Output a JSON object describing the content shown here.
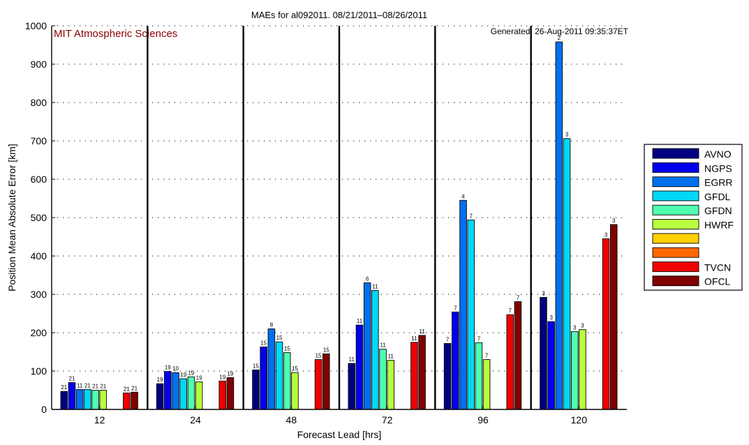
{
  "chart_data": {
    "type": "bar",
    "title": "MAEs for al092011. 08/21/2011–08/26/2011",
    "xlabel": "Forecast Lead [hrs]",
    "ylabel": "Position Mean Absolute Error [km]",
    "ylim": [
      0,
      1000
    ],
    "yticks": [
      0,
      100,
      200,
      300,
      400,
      500,
      600,
      700,
      800,
      900,
      1000
    ],
    "categories": [
      "12",
      "24",
      "48",
      "72",
      "96",
      "120"
    ],
    "grid": "horizontal dotted",
    "legend_position": "right",
    "annotation_left": "MIT Atmospheric Sciences",
    "annotation_right": "Generated: 26-Aug-2011 09:35:37ET",
    "series": [
      {
        "name": "AVNO",
        "color": "#000080",
        "values": [
          47,
          67,
          103,
          120,
          172,
          292
        ],
        "counts": [
          "21",
          "19",
          "15",
          "11",
          "7",
          "3"
        ]
      },
      {
        "name": "NGPS",
        "color": "#0000ee",
        "values": [
          70,
          99,
          163,
          220,
          254,
          229
        ],
        "counts": [
          "21",
          "19",
          "15",
          "11",
          "7",
          "3"
        ]
      },
      {
        "name": "EGRR",
        "color": "#0070ee",
        "values": [
          52,
          96,
          210,
          330,
          545,
          958
        ],
        "counts": [
          "11",
          "10",
          "8",
          "6",
          "4",
          "2"
        ]
      },
      {
        "name": "GFDL",
        "color": "#00d8f5",
        "values": [
          52,
          80,
          176,
          310,
          494,
          706
        ],
        "counts": [
          "21",
          "19",
          "15",
          "11",
          "7",
          "3"
        ]
      },
      {
        "name": "GFDN",
        "color": "#50ffb0",
        "values": [
          50,
          85,
          148,
          157,
          174,
          203
        ],
        "counts": [
          "21",
          "19",
          "15",
          "11",
          "7",
          "3"
        ]
      },
      {
        "name": "HWRF",
        "color": "#b8ff40",
        "values": [
          50,
          72,
          96,
          128,
          130,
          208
        ],
        "counts": [
          "21",
          "19",
          "15",
          "11",
          "7",
          "3"
        ]
      },
      {
        "name": "",
        "color": "#ffd000",
        "values": [
          null,
          null,
          null,
          null,
          null,
          null
        ],
        "counts": [
          "",
          "",
          "",
          "",
          "",
          ""
        ]
      },
      {
        "name": "",
        "color": "#ff6800",
        "values": [
          null,
          null,
          null,
          null,
          null,
          null
        ],
        "counts": [
          "",
          "",
          "",
          "",
          "",
          ""
        ]
      },
      {
        "name": "TVCN",
        "color": "#f00000",
        "values": [
          43,
          74,
          130,
          175,
          247,
          445
        ],
        "counts": [
          "21",
          "19",
          "15",
          "11",
          "7",
          "3"
        ]
      },
      {
        "name": "OFCL",
        "color": "#800000",
        "values": [
          45,
          83,
          145,
          193,
          281,
          482
        ],
        "counts": [
          "21",
          "19",
          "15",
          "11",
          "7",
          "3"
        ]
      }
    ]
  }
}
